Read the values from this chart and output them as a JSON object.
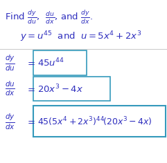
{
  "bg_color": "#ffffff",
  "text_color": "#2E2EBE",
  "box_color": "#3399BB",
  "fig_width": 2.41,
  "fig_height": 2.36,
  "dpi": 100
}
